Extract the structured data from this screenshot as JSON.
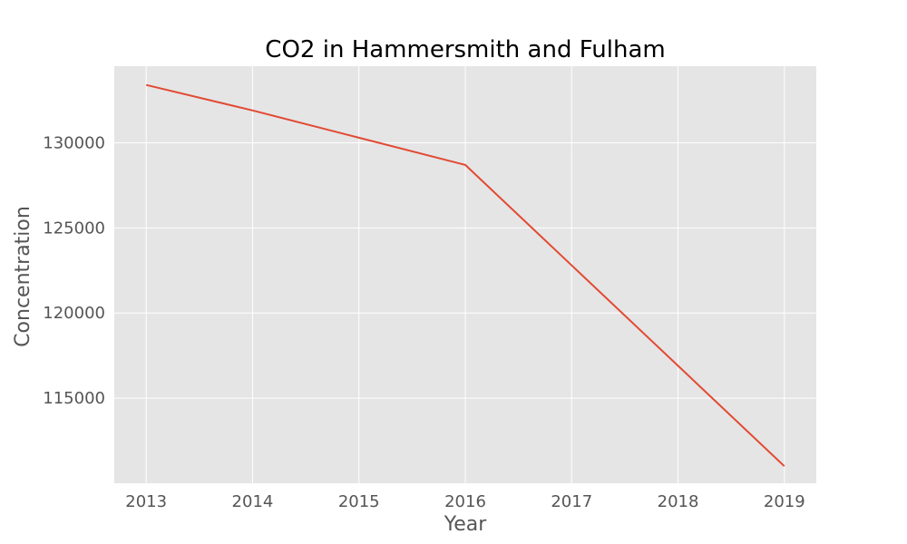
{
  "chart_data": {
    "type": "line",
    "title": "CO2 in Hammersmith and Fulham",
    "xlabel": "Year",
    "ylabel": "Concentration",
    "x": [
      2013,
      2014,
      2015,
      2016,
      2017,
      2018,
      2019
    ],
    "series": [
      {
        "values": [
          133400,
          131900,
          130300,
          128700,
          122800,
          116900,
          111000
        ]
      }
    ],
    "xlim": [
      2012.7,
      2019.3
    ],
    "ylim": [
      110000,
      134500
    ],
    "x_ticks": [
      "2013",
      "2014",
      "2015",
      "2016",
      "2017",
      "2018",
      "2019"
    ],
    "y_ticks": [
      "115000",
      "120000",
      "125000",
      "130000"
    ],
    "y_tick_values": [
      115000,
      120000,
      125000,
      130000
    ],
    "grid": true,
    "style": "ggplot"
  },
  "colors": {
    "plot_background": "#e5e5e5",
    "grid": "#ffffff",
    "line": "#e24a33",
    "tick_text": "#555555",
    "title_text": "#000000"
  }
}
